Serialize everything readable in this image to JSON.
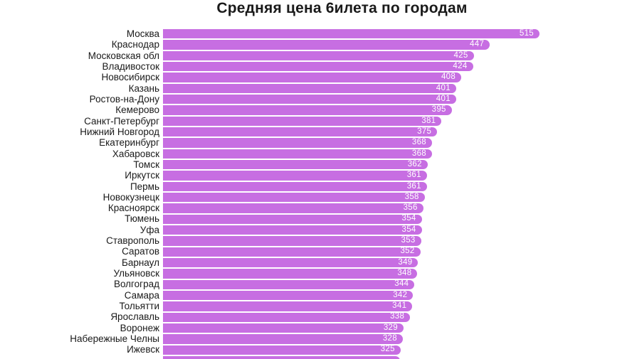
{
  "chart_data": {
    "type": "bar",
    "orientation": "horizontal",
    "title": "Средняя цена 6илета по городам",
    "categories": [
      "Москва",
      "Краснодар",
      "Московская обл",
      "Владивосток",
      "Новосибирск",
      "Казань",
      "Ростов-на-Дону",
      "Кемерово",
      "Санкт-Петербург",
      "Нижний Новгород",
      "Екатеринбург",
      "Хабаровск",
      "Томск",
      "Иркутск",
      "Пермь",
      "Новокузнецк",
      "Красноярск",
      "Тюмень",
      "Уфа",
      "Ставрополь",
      "Саратов",
      "Барнаул",
      "Ульяновск",
      "Волгоград",
      "Самара",
      "Тольятти",
      "Ярославль",
      "Воронеж",
      "Набережные Челны",
      "Ижевск"
    ],
    "values": [
      515,
      447,
      425,
      424,
      408,
      401,
      401,
      395,
      381,
      375,
      368,
      368,
      362,
      361,
      361,
      358,
      356,
      354,
      354,
      353,
      352,
      349,
      348,
      344,
      342,
      341,
      338,
      329,
      328,
      325
    ],
    "xlim": [
      0,
      515
    ],
    "grid": false,
    "legend": false,
    "value_labels_position": "inside-right",
    "bar_color": "#c76ee2",
    "value_label_color": "#ffffff",
    "text_color": "#1a1a1a",
    "layout_hints": {
      "bars_sorted_descending": true,
      "chart_cut_off_at_bottom": true,
      "partial_last_bar_fraction_of_max": 0.63
    }
  }
}
